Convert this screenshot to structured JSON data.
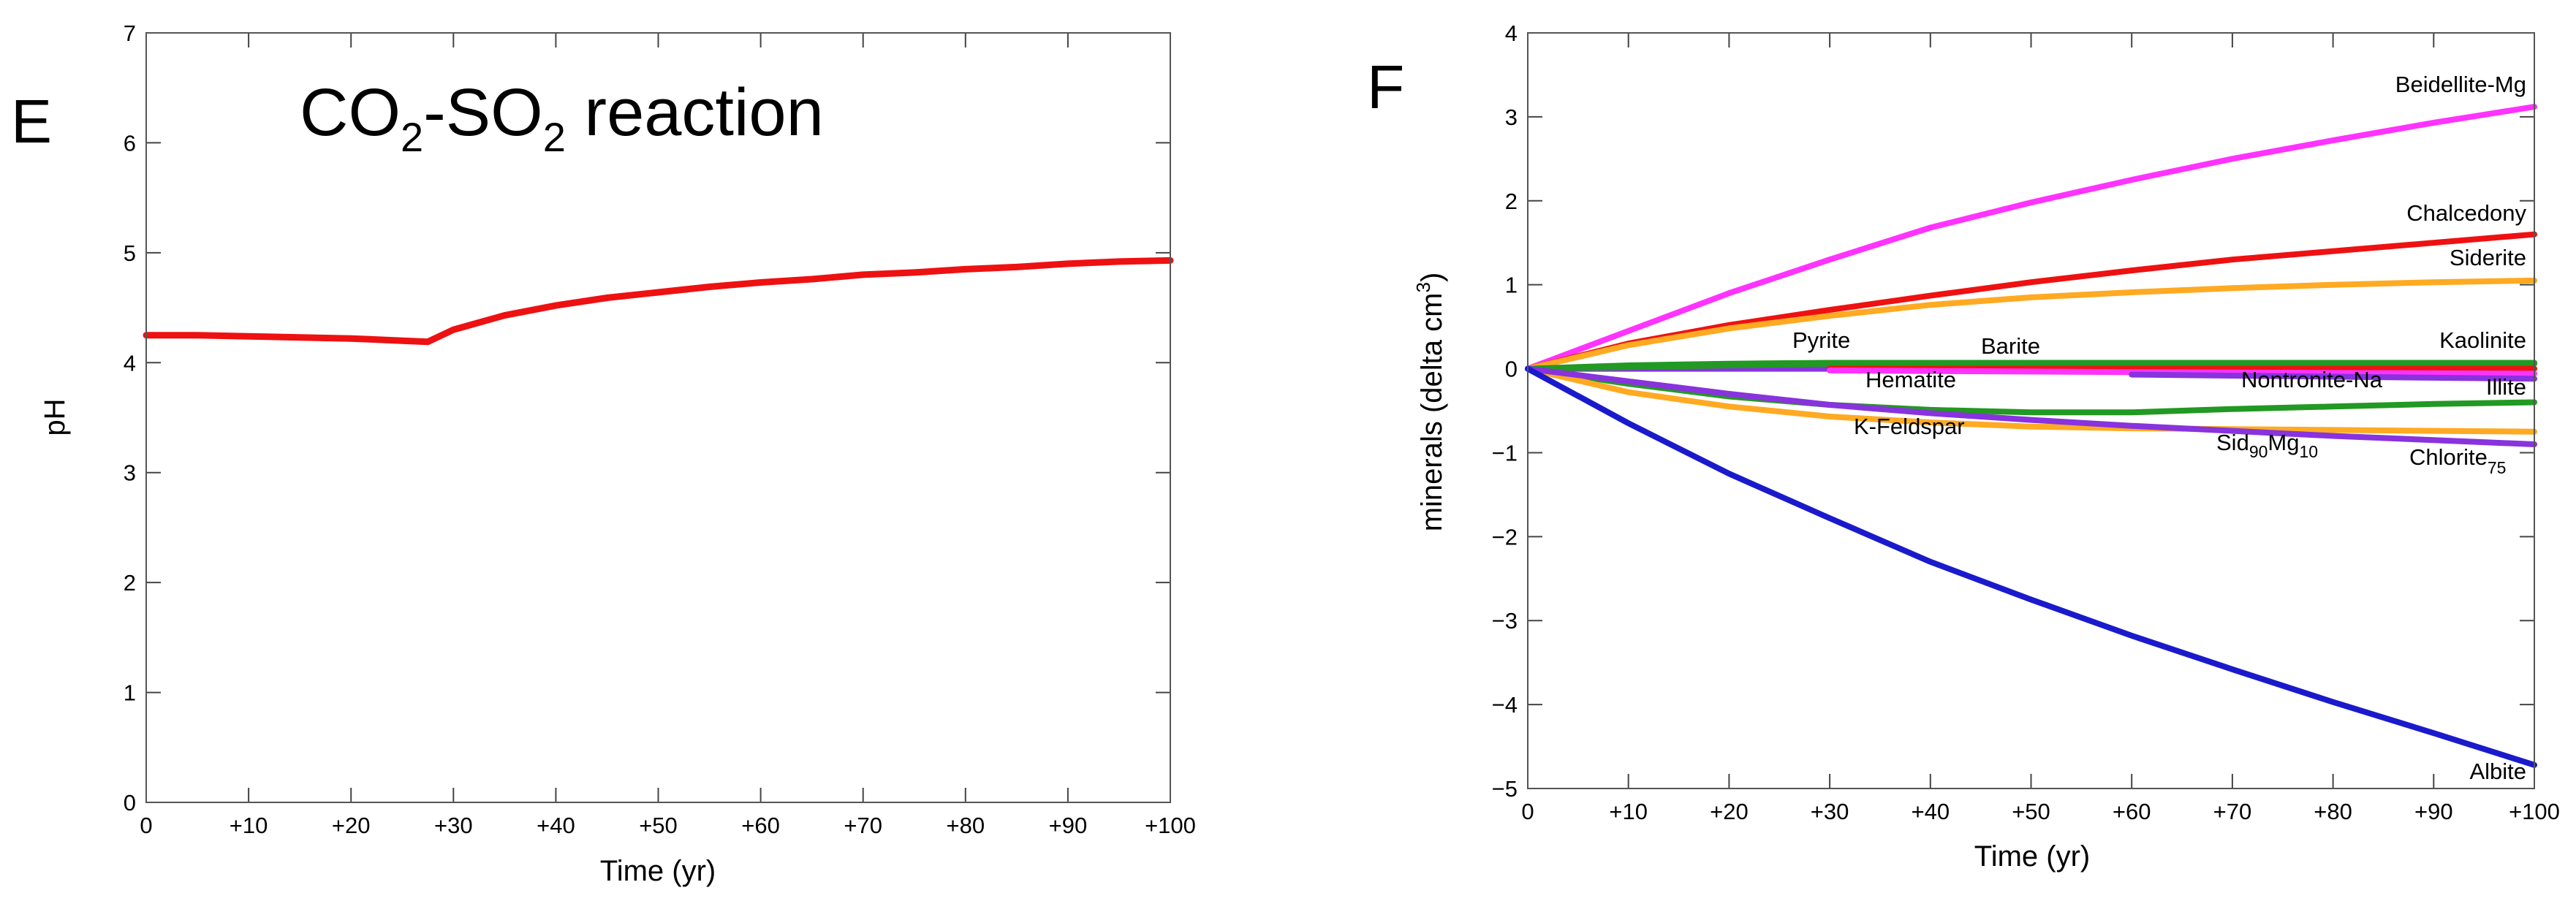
{
  "chart_data": [
    {
      "panel": "E",
      "type": "line",
      "title": "CO2-SO2 reaction",
      "title_parts": {
        "a": "CO",
        "sub1": "2",
        "b": "-SO",
        "sub2": "2",
        "c": " reaction"
      },
      "xlabel": "Time (yr)",
      "ylabel": "pH",
      "xlim": [
        0,
        100
      ],
      "ylim": [
        0,
        7
      ],
      "x_ticks": [
        0,
        10,
        20,
        30,
        40,
        50,
        60,
        70,
        80,
        90,
        100
      ],
      "x_tick_labels": [
        "0",
        "+10",
        "+20",
        "+30",
        "+40",
        "+50",
        "+60",
        "+70",
        "+80",
        "+90",
        "+100"
      ],
      "y_ticks": [
        0,
        1,
        2,
        3,
        4,
        5,
        6,
        7
      ],
      "y_tick_labels": [
        "0",
        "1",
        "2",
        "3",
        "4",
        "5",
        "6",
        "7"
      ],
      "series": [
        {
          "name": "pH",
          "color": "#ee1111",
          "x": [
            0,
            5,
            10,
            15,
            20,
            25,
            27.5,
            30,
            35,
            40,
            45,
            50,
            55,
            60,
            65,
            70,
            75,
            80,
            85,
            90,
            95,
            100
          ],
          "y": [
            4.25,
            4.25,
            4.24,
            4.23,
            4.22,
            4.2,
            4.19,
            4.3,
            4.43,
            4.52,
            4.59,
            4.64,
            4.69,
            4.73,
            4.76,
            4.8,
            4.82,
            4.85,
            4.87,
            4.9,
            4.92,
            4.93
          ]
        }
      ]
    },
    {
      "panel": "F",
      "type": "line",
      "title": "",
      "xlabel": "Time (yr)",
      "ylabel": "minerals (delta cm3)",
      "ylabel_parts": {
        "a": "minerals (delta cm",
        "sup": "3",
        "b": ")"
      },
      "xlim": [
        0,
        100
      ],
      "ylim": [
        -5,
        4
      ],
      "x_ticks": [
        0,
        10,
        20,
        30,
        40,
        50,
        60,
        70,
        80,
        90,
        100
      ],
      "x_tick_labels": [
        "0",
        "+10",
        "+20",
        "+30",
        "+40",
        "+50",
        "+60",
        "+70",
        "+80",
        "+90",
        "+100"
      ],
      "y_ticks": [
        -5,
        -4,
        -3,
        -2,
        -1,
        0,
        1,
        2,
        3,
        4
      ],
      "y_tick_labels": [
        "−5",
        "−4",
        "−3",
        "−2",
        "−1",
        "0",
        "1",
        "2",
        "3",
        "4"
      ],
      "series": [
        {
          "name": "Beidellite-Mg",
          "color": "#ff33ff",
          "x": [
            0,
            10,
            20,
            30,
            40,
            50,
            60,
            70,
            80,
            90,
            100
          ],
          "y": [
            0,
            0.45,
            0.9,
            1.3,
            1.68,
            1.98,
            2.25,
            2.5,
            2.72,
            2.93,
            3.12
          ]
        },
        {
          "name": "Chalcedony",
          "color": "#ee1111",
          "x": [
            0,
            10,
            20,
            30,
            40,
            50,
            60,
            70,
            80,
            90,
            100
          ],
          "y": [
            0,
            0.3,
            0.52,
            0.7,
            0.87,
            1.03,
            1.17,
            1.3,
            1.4,
            1.5,
            1.6
          ]
        },
        {
          "name": "Siderite",
          "color": "#ffaa22",
          "x": [
            0,
            10,
            20,
            30,
            40,
            50,
            60,
            70,
            80,
            90,
            100
          ],
          "y": [
            0,
            0.28,
            0.48,
            0.63,
            0.76,
            0.85,
            0.91,
            0.96,
            1.0,
            1.03,
            1.05
          ]
        },
        {
          "name": "Kaolinite",
          "color": "#229922",
          "x": [
            0,
            10,
            20,
            30,
            40,
            50,
            60,
            70,
            80,
            90,
            100
          ],
          "y": [
            0,
            0.04,
            0.06,
            0.07,
            0.07,
            0.07,
            0.07,
            0.07,
            0.07,
            0.07,
            0.07
          ]
        },
        {
          "name": "Pyrite",
          "color": "#8833dd",
          "x": [
            0,
            30
          ],
          "y": [
            0,
            0.0
          ]
        },
        {
          "name": "Barite",
          "color": "#229922",
          "x": [
            0,
            30,
            100
          ],
          "y": [
            0,
            0.06,
            0.06
          ]
        },
        {
          "name": "Hematite",
          "color": "#ee1111",
          "x": [
            30,
            100
          ],
          "y": [
            0.0,
            0.0
          ]
        },
        {
          "name": "Nontronite-Na",
          "color": "#ff33ff",
          "x": [
            30,
            60,
            100
          ],
          "y": [
            -0.02,
            -0.04,
            -0.06
          ]
        },
        {
          "name": "Illite",
          "color": "#8833dd",
          "x": [
            60,
            100
          ],
          "y": [
            -0.07,
            -0.12
          ]
        },
        {
          "name": "K-Feldspar",
          "color": "#229922",
          "x": [
            0,
            10,
            20,
            30,
            40,
            50,
            60,
            70,
            80,
            90,
            100
          ],
          "y": [
            0,
            -0.18,
            -0.33,
            -0.43,
            -0.49,
            -0.52,
            -0.52,
            -0.48,
            -0.45,
            -0.42,
            -0.4
          ]
        },
        {
          "name": "Sid90Mg10",
          "color": "#ffaa22",
          "x": [
            0,
            10,
            20,
            30,
            40,
            50,
            60,
            70,
            80,
            90,
            100
          ],
          "y": [
            0,
            -0.28,
            -0.45,
            -0.57,
            -0.64,
            -0.69,
            -0.71,
            -0.72,
            -0.73,
            -0.74,
            -0.75
          ]
        },
        {
          "name": "Chlorite75",
          "color": "#8833dd",
          "x": [
            0,
            10,
            20,
            30,
            40,
            50,
            60,
            70,
            80,
            90,
            100
          ],
          "y": [
            0,
            -0.15,
            -0.3,
            -0.43,
            -0.53,
            -0.61,
            -0.68,
            -0.74,
            -0.8,
            -0.85,
            -0.9
          ]
        },
        {
          "name": "Albite",
          "color": "#1a1acc",
          "x": [
            0,
            10,
            20,
            30,
            40,
            50,
            60,
            70,
            80,
            90,
            100
          ],
          "y": [
            0,
            -0.65,
            -1.25,
            -1.78,
            -2.3,
            -2.75,
            -3.18,
            -3.58,
            -3.97,
            -4.34,
            -4.72
          ]
        }
      ],
      "labels": {
        "beidellite": "Beidellite-Mg",
        "chalcedony": "Chalcedony",
        "siderite": "Siderite",
        "kaolinite": "Kaolinite",
        "pyrite": "Pyrite",
        "barite": "Barite",
        "hematite": "Hematite",
        "nontronite": "Nontronite-Na",
        "illite": "Illite",
        "kfeldspar": "K-Feldspar",
        "sidmg": {
          "a": "Sid",
          "sub1": "90",
          "b": "Mg",
          "sub2": "10"
        },
        "chlorite": {
          "a": "Chlorite",
          "sub": "75"
        },
        "albite": "Albite"
      }
    }
  ]
}
